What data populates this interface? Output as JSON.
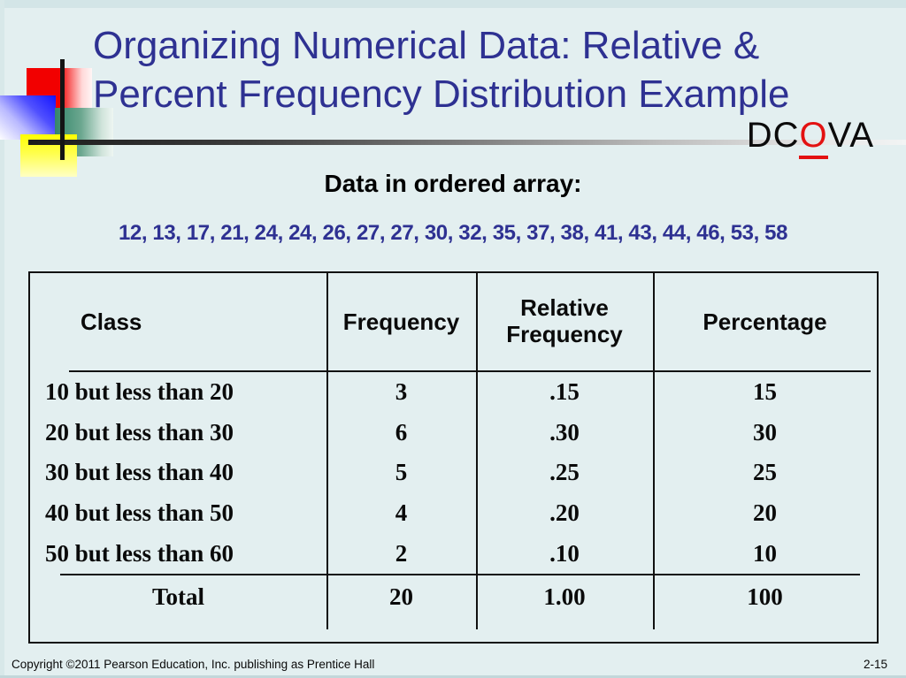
{
  "slide": {
    "title_line1": "Organizing Numerical Data: Relative &",
    "title_line2": "Percent Frequency Distribution Example",
    "dcova": {
      "prefix": "DC",
      "highlight": "O",
      "suffix": "VA"
    },
    "array_heading": "Data in ordered array:",
    "array_values": "12, 13, 17, 21, 24, 24, 26, 27, 27, 30, 32, 35, 37, 38, 41, 43, 44, 46, 53, 58",
    "footer": {
      "copyright": "Copyright ©2011 Pearson Education, Inc. publishing as Prentice Hall",
      "page": "2-15"
    }
  },
  "table": {
    "headers": [
      "Class",
      "Frequency",
      "Relative Frequency",
      "Percentage"
    ],
    "rows": [
      {
        "class": "10 but less than 20",
        "frequency": "3",
        "relative_frequency": ".15",
        "percentage": "15"
      },
      {
        "class": "20 but less than 30",
        "frequency": "6",
        "relative_frequency": ".30",
        "percentage": "30"
      },
      {
        "class": "30 but less than 40",
        "frequency": "5",
        "relative_frequency": ".25",
        "percentage": "25"
      },
      {
        "class": "40 but less than 50",
        "frequency": "4",
        "relative_frequency": ".20",
        "percentage": "20"
      },
      {
        "class": "50 but less than 60",
        "frequency": "2",
        "relative_frequency": ".10",
        "percentage": "10"
      }
    ],
    "total": {
      "label": "Total",
      "frequency": "20",
      "relative_frequency": "1.00",
      "percentage": "100"
    }
  },
  "chart_data": {
    "type": "table",
    "title": "Relative & Percent Frequency Distribution",
    "categories": [
      "10 but less than 20",
      "20 but less than 30",
      "30 but less than 40",
      "40 but less than 50",
      "50 but less than 60"
    ],
    "series": [
      {
        "name": "Frequency",
        "values": [
          3,
          6,
          5,
          4,
          2
        ]
      },
      {
        "name": "Relative Frequency",
        "values": [
          0.15,
          0.3,
          0.25,
          0.2,
          0.1
        ]
      },
      {
        "name": "Percentage",
        "values": [
          15,
          30,
          25,
          20,
          10
        ]
      }
    ],
    "totals": {
      "Frequency": 20,
      "Relative Frequency": 1.0,
      "Percentage": 100
    },
    "ordered_array": [
      12,
      13,
      17,
      21,
      24,
      24,
      26,
      27,
      27,
      30,
      32,
      35,
      37,
      38,
      41,
      43,
      44,
      46,
      53,
      58
    ]
  },
  "colors": {
    "background": "#e3eff0",
    "title_blue": "#2e3192",
    "accent_red": "#e31111",
    "text_black": "#0a0a0a"
  }
}
